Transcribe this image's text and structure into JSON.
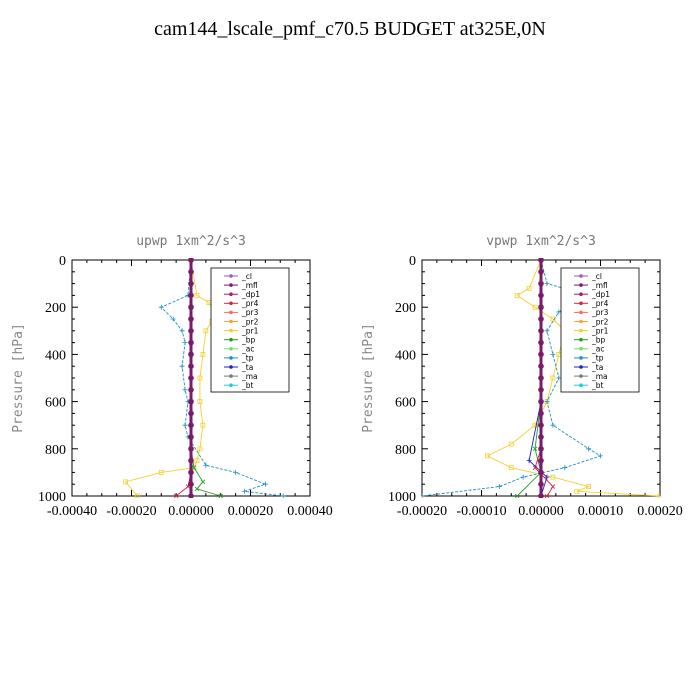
{
  "title": "cam144_lscale_pmf_c70.5  BUDGET at325E,0N",
  "ylabel": "Pressure [hPa]",
  "y_ticks": [
    "0",
    "200",
    "400",
    "600",
    "800",
    "1000"
  ],
  "legend": [
    {
      "name": "_cl",
      "color": "#9a5ac8"
    },
    {
      "name": "_mfl",
      "color": "#7a1a6a"
    },
    {
      "name": "_dp1",
      "color": "#a02060"
    },
    {
      "name": "_pr4",
      "color": "#e0203a"
    },
    {
      "name": "_pr3",
      "color": "#ff6a50"
    },
    {
      "name": "_pr2",
      "color": "#ffa030"
    },
    {
      "name": "_pr1",
      "color": "#f0d030"
    },
    {
      "name": "_bp",
      "color": "#20a020"
    },
    {
      "name": "_ac",
      "color": "#70e060"
    },
    {
      "name": "_tp",
      "color": "#2090c0"
    },
    {
      "name": "_ta",
      "color": "#2020c0"
    },
    {
      "name": "_ma",
      "color": "#7a7a7a"
    },
    {
      "name": "_bt",
      "color": "#20d0d0"
    }
  ],
  "chart_data": [
    {
      "type": "line",
      "title": "upwp   1xm^2/s^3",
      "ylabel": "Pressure [hPa]",
      "xlim": [
        -0.0004,
        0.0004
      ],
      "ylim": [
        1000,
        0
      ],
      "x_ticks": [
        "-0.00040",
        "-0.00020",
        "0.00000",
        "0.00020",
        "0.00040"
      ],
      "series": [
        {
          "name": "_pr1",
          "color": "#f0d030",
          "x": [
            0,
            2e-05,
            6e-05,
            8e-05,
            7e-05,
            5e-05,
            4e-05,
            3e-05,
            3e-05,
            4e-05,
            3e-05,
            2e-05,
            1e-05,
            -0.0001,
            -0.00022,
            -0.00018
          ],
          "y": [
            0,
            150,
            180,
            220,
            260,
            300,
            400,
            500,
            600,
            700,
            800,
            850,
            880,
            900,
            940,
            1000
          ]
        },
        {
          "name": "_tp",
          "color": "#2090c0",
          "x": [
            0,
            -1e-05,
            -0.0001,
            -6e-05,
            -3e-05,
            -2e-05,
            -3e-05,
            -2e-05,
            -1e-05,
            -2e-05,
            -1e-05,
            5e-05,
            0.00015,
            0.00025,
            0.00018,
            0.00031
          ],
          "y": [
            0,
            150,
            200,
            250,
            300,
            350,
            450,
            550,
            600,
            700,
            750,
            870,
            900,
            950,
            980,
            1000
          ]
        },
        {
          "name": "_bp",
          "color": "#20a020",
          "x": [
            0,
            0,
            0,
            0,
            0,
            1e-05,
            4e-05,
            2e-05,
            0.0001
          ],
          "y": [
            0,
            200,
            400,
            600,
            800,
            880,
            940,
            970,
            1000
          ]
        },
        {
          "name": "_pr4",
          "color": "#e0203a",
          "x": [
            0,
            0,
            0,
            0,
            0,
            0,
            -1e-05,
            -5e-05
          ],
          "y": [
            0,
            200,
            400,
            600,
            800,
            900,
            960,
            1000
          ]
        },
        {
          "name": "_ta",
          "color": "#2020c0",
          "x": [
            0,
            0,
            0,
            0,
            0,
            0,
            0
          ],
          "y": [
            0,
            200,
            400,
            600,
            800,
            900,
            1000
          ]
        },
        {
          "name": "_mfl",
          "color": "#7a1a6a",
          "x": [
            0,
            0,
            0,
            0,
            0,
            0,
            0,
            0,
            0,
            0,
            0,
            0,
            0,
            0,
            0,
            0,
            0,
            0,
            0,
            0,
            0
          ],
          "y": [
            0,
            50,
            100,
            150,
            200,
            250,
            300,
            350,
            400,
            450,
            500,
            550,
            600,
            650,
            700,
            750,
            800,
            850,
            900,
            950,
            1000
          ]
        }
      ]
    },
    {
      "type": "line",
      "title": "vpwp   1xm^2/s^3",
      "ylabel": "Pressure [hPa]",
      "xlim": [
        -0.0002,
        0.0002
      ],
      "ylim": [
        1000,
        0
      ],
      "x_ticks": [
        "-0.00020",
        "-0.00010",
        "0.00000",
        "0.00010",
        "0.00020"
      ],
      "series": [
        {
          "name": "_pr1",
          "color": "#f0d030",
          "x": [
            0,
            -2e-05,
            -4e-05,
            -1e-05,
            2e-05,
            4e-05,
            3e-05,
            2e-05,
            1e-05,
            -1e-05,
            -5e-05,
            -9e-05,
            -5e-05,
            2e-05,
            8e-05,
            6e-05,
            0.0002
          ],
          "y": [
            0,
            120,
            150,
            200,
            250,
            300,
            400,
            500,
            600,
            700,
            780,
            830,
            880,
            920,
            960,
            980,
            1000
          ]
        },
        {
          "name": "_tp",
          "color": "#2090c0",
          "x": [
            0,
            1e-05,
            8e-05,
            3e-05,
            1e-05,
            2e-05,
            3e-05,
            1e-05,
            2e-05,
            8e-05,
            0.0001,
            4e-05,
            -3e-05,
            -7e-05,
            -0.0002
          ],
          "y": [
            0,
            100,
            150,
            220,
            300,
            400,
            500,
            600,
            700,
            800,
            830,
            880,
            920,
            960,
            1000
          ]
        },
        {
          "name": "_bp",
          "color": "#20a020",
          "x": [
            0,
            0,
            0,
            0,
            -1e-05,
            0,
            -4e-05
          ],
          "y": [
            0,
            200,
            400,
            600,
            800,
            900,
            1000
          ]
        },
        {
          "name": "_pr4",
          "color": "#e0203a",
          "x": [
            0,
            0,
            0,
            0,
            0,
            -1e-05,
            2e-05,
            1e-05
          ],
          "y": [
            0,
            200,
            400,
            600,
            800,
            880,
            960,
            1000
          ]
        },
        {
          "name": "_ta",
          "color": "#2020c0",
          "x": [
            0,
            0,
            0,
            0,
            -2e-05,
            1e-05,
            0
          ],
          "y": [
            0,
            200,
            400,
            600,
            850,
            920,
            1000
          ]
        },
        {
          "name": "_mfl",
          "color": "#7a1a6a",
          "x": [
            0,
            0,
            0,
            0,
            0,
            0,
            0,
            0,
            0,
            0,
            0,
            0,
            0,
            0,
            0,
            0,
            0,
            0,
            0,
            0,
            0
          ],
          "y": [
            0,
            50,
            100,
            150,
            200,
            250,
            300,
            350,
            400,
            450,
            500,
            550,
            600,
            650,
            700,
            750,
            800,
            850,
            900,
            950,
            1000
          ]
        }
      ]
    }
  ]
}
